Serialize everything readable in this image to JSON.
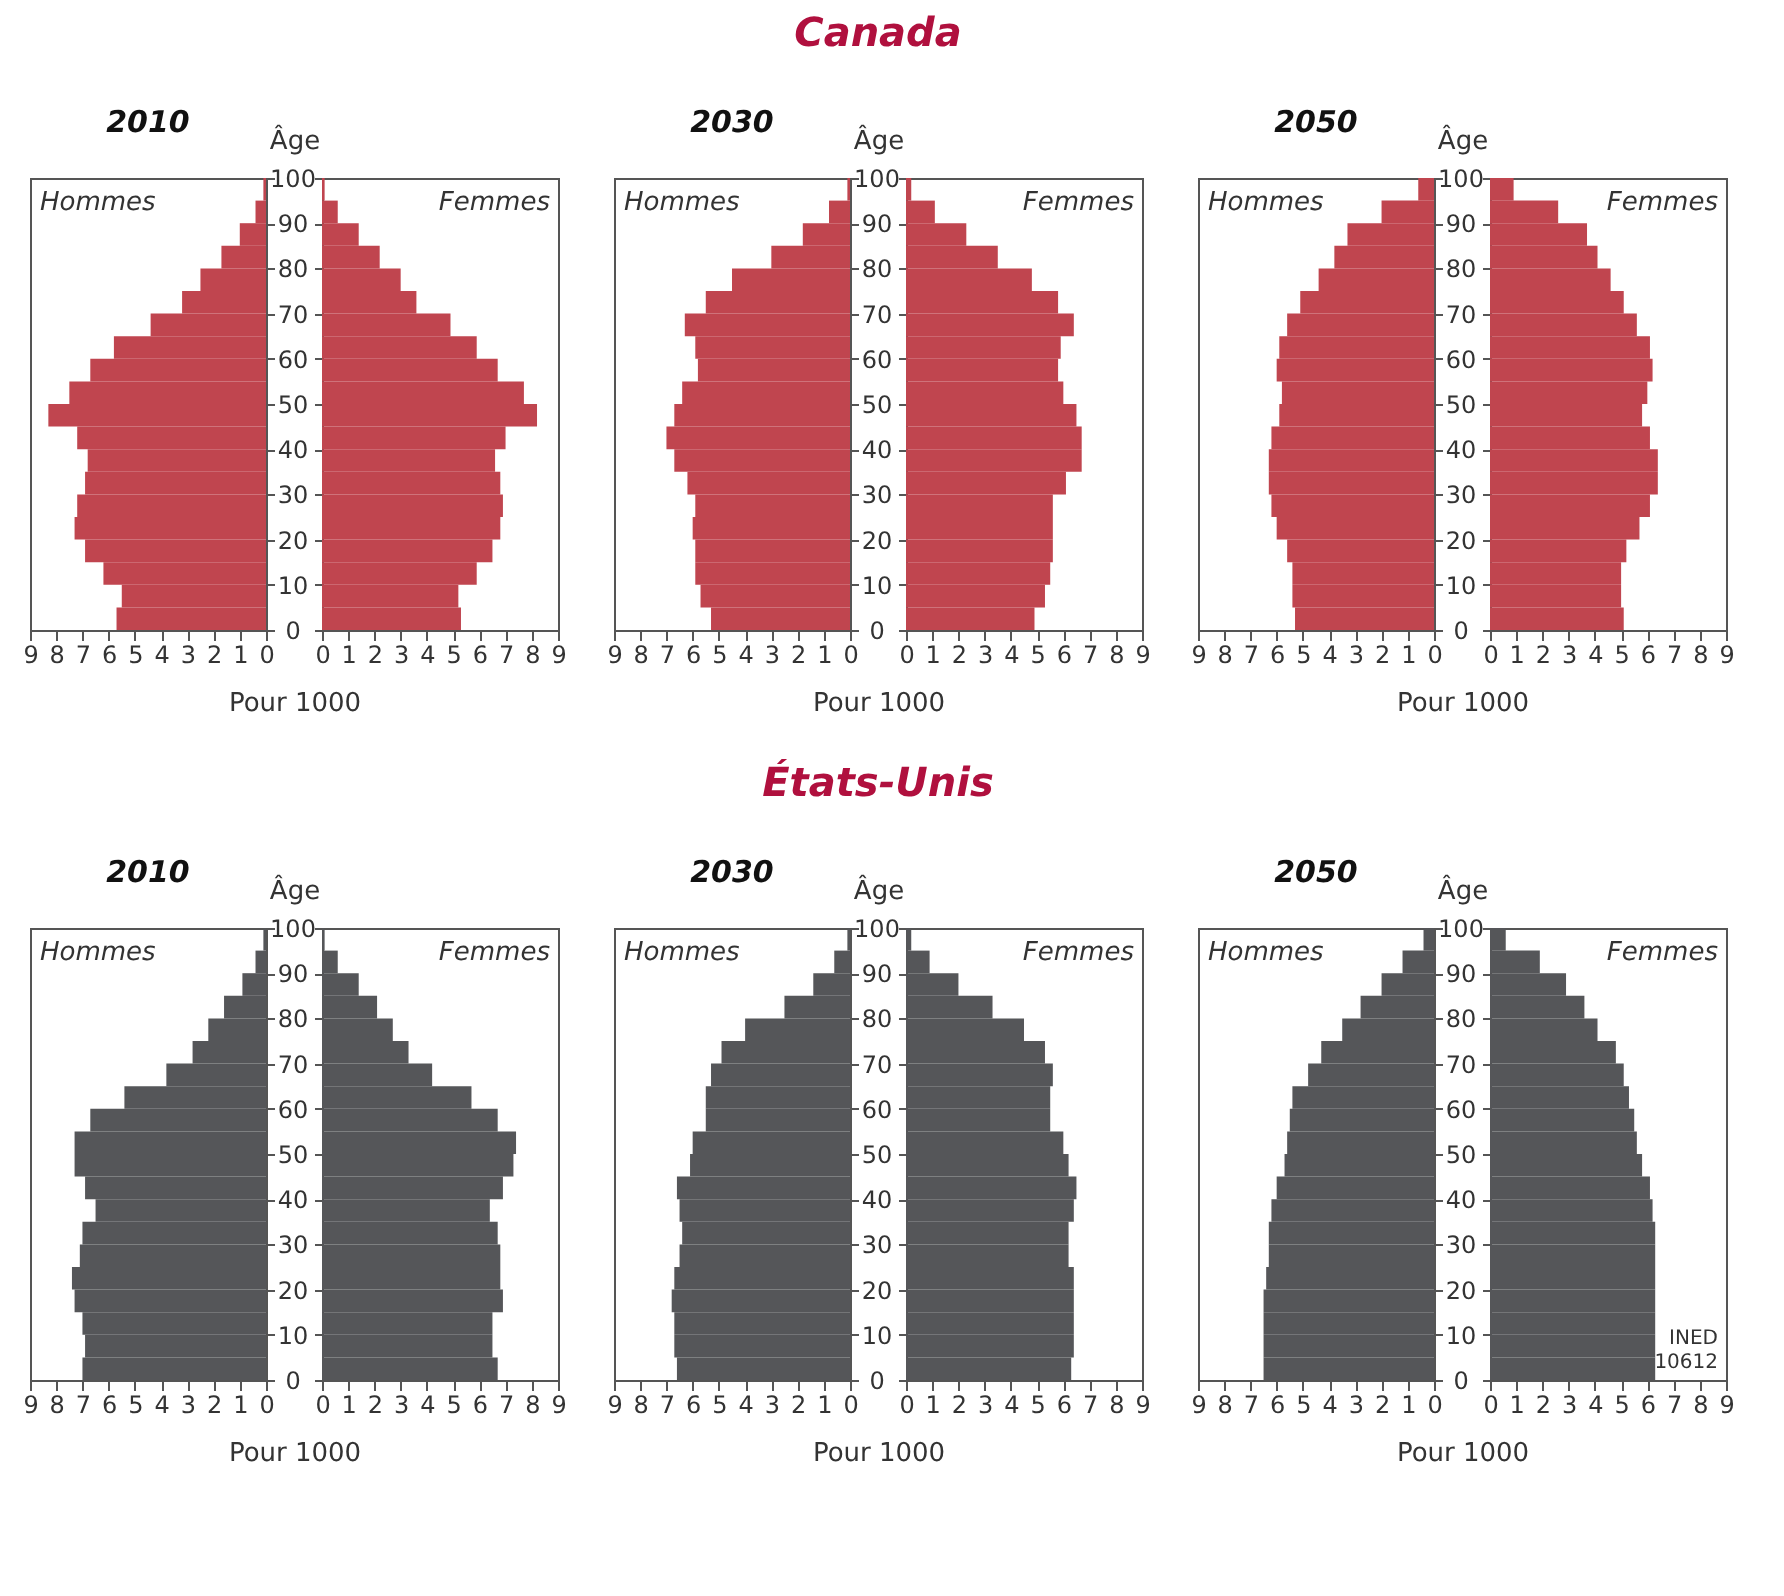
{
  "chart_data": [
    {
      "type": "histogram",
      "orientation": "horizontal",
      "subtitle": "2010",
      "xlabel": "Pour 1000",
      "annotations": [
        "Hommes"
      ],
      "color": "#c0454f",
      "bins": [
        0,
        5,
        10,
        15,
        20,
        25,
        30,
        35,
        40,
        45,
        50,
        55,
        60,
        65,
        70,
        75,
        80,
        85,
        90,
        95,
        100
      ],
      "values": [
        5.7,
        5.5,
        6.2,
        6.9,
        7.3,
        7.2,
        6.9,
        6.8,
        7.2,
        8.3,
        7.5,
        6.7,
        5.8,
        4.4,
        3.2,
        2.5,
        1.7,
        1.0,
        0.4,
        0.1
      ],
      "xlim": [
        9,
        0
      ],
      "xticks": [
        9,
        8,
        7,
        6,
        5,
        4,
        3,
        2,
        1,
        0
      ],
      "ylim": [
        0,
        100
      ],
      "yticks": [
        0,
        10,
        20,
        30,
        40,
        50,
        60,
        70,
        80,
        90,
        100
      ],
      "tick_labels": "x"
    },
    {
      "type": "histogram",
      "orientation": "horizontal",
      "ylabel": "Âge",
      "annotations": [
        "Femmes"
      ],
      "color": "#c0454f",
      "bins": [
        0,
        5,
        10,
        15,
        20,
        25,
        30,
        35,
        40,
        45,
        50,
        55,
        60,
        65,
        70,
        75,
        80,
        85,
        90,
        95,
        100
      ],
      "values": [
        5.3,
        5.2,
        5.9,
        6.5,
        6.8,
        6.9,
        6.8,
        6.6,
        7.0,
        8.2,
        7.7,
        6.7,
        5.9,
        4.9,
        3.6,
        3.0,
        2.2,
        1.4,
        0.6,
        0.1
      ],
      "xlim": [
        0,
        9
      ],
      "xticks": [
        0,
        1,
        2,
        3,
        4,
        5,
        6,
        7,
        8,
        9
      ],
      "ylim": [
        0,
        100
      ],
      "yticks": [
        0,
        10,
        20,
        30,
        40,
        50,
        60,
        70,
        80,
        90,
        100
      ]
    },
    {
      "type": "histogram",
      "orientation": "horizontal",
      "title": "Canada",
      "subtitle": "2030",
      "xlabel": "Pour 1000",
      "annotations": [
        "Hommes"
      ],
      "color": "#c0454f",
      "bins": [
        0,
        5,
        10,
        15,
        20,
        25,
        30,
        35,
        40,
        45,
        50,
        55,
        60,
        65,
        70,
        75,
        80,
        85,
        90,
        95,
        100
      ],
      "values": [
        5.3,
        5.7,
        5.9,
        5.9,
        6.0,
        5.9,
        6.2,
        6.7,
        7.0,
        6.7,
        6.4,
        5.8,
        5.9,
        6.3,
        5.5,
        4.5,
        3.0,
        1.8,
        0.8,
        0.1
      ],
      "xlim": [
        9,
        0
      ],
      "xticks": [
        9,
        8,
        7,
        6,
        5,
        4,
        3,
        2,
        1,
        0
      ],
      "ylim": [
        0,
        100
      ],
      "yticks": [
        0,
        10,
        20,
        30,
        40,
        50,
        60,
        70,
        80,
        90,
        100
      ],
      "tick_labels": "x"
    },
    {
      "type": "histogram",
      "orientation": "horizontal",
      "ylabel": "Âge",
      "annotations": [
        "Femmes"
      ],
      "color": "#c0454f",
      "bins": [
        0,
        5,
        10,
        15,
        20,
        25,
        30,
        35,
        40,
        45,
        50,
        55,
        60,
        65,
        70,
        75,
        80,
        85,
        90,
        95,
        100
      ],
      "values": [
        4.9,
        5.3,
        5.5,
        5.6,
        5.6,
        5.6,
        6.1,
        6.7,
        6.7,
        6.5,
        6.0,
        5.8,
        5.9,
        6.4,
        5.8,
        4.8,
        3.5,
        2.3,
        1.1,
        0.2
      ],
      "xlim": [
        0,
        9
      ],
      "xticks": [
        0,
        1,
        2,
        3,
        4,
        5,
        6,
        7,
        8,
        9
      ],
      "ylim": [
        0,
        100
      ],
      "yticks": [
        0,
        10,
        20,
        30,
        40,
        50,
        60,
        70,
        80,
        90,
        100
      ]
    },
    {
      "type": "histogram",
      "orientation": "horizontal",
      "subtitle": "2050",
      "xlabel": "Pour 1000",
      "annotations": [
        "Hommes"
      ],
      "color": "#c0454f",
      "bins": [
        0,
        5,
        10,
        15,
        20,
        25,
        30,
        35,
        40,
        45,
        50,
        55,
        60,
        65,
        70,
        75,
        80,
        85,
        90,
        95,
        100
      ],
      "values": [
        5.3,
        5.4,
        5.4,
        5.6,
        6.0,
        6.2,
        6.3,
        6.3,
        6.2,
        5.9,
        5.8,
        6.0,
        5.9,
        5.6,
        5.1,
        4.4,
        3.8,
        3.3,
        2.0,
        0.6
      ],
      "xlim": [
        9,
        0
      ],
      "xticks": [
        9,
        8,
        7,
        6,
        5,
        4,
        3,
        2,
        1,
        0
      ],
      "ylim": [
        0,
        100
      ],
      "yticks": [
        0,
        10,
        20,
        30,
        40,
        50,
        60,
        70,
        80,
        90,
        100
      ],
      "tick_labels": "x"
    },
    {
      "type": "histogram",
      "orientation": "horizontal",
      "ylabel": "Âge",
      "annotations": [
        "Femmes"
      ],
      "color": "#c0454f",
      "bins": [
        0,
        5,
        10,
        15,
        20,
        25,
        30,
        35,
        40,
        45,
        50,
        55,
        60,
        65,
        70,
        75,
        80,
        85,
        90,
        95,
        100
      ],
      "values": [
        5.1,
        5.0,
        5.0,
        5.2,
        5.7,
        6.1,
        6.4,
        6.4,
        6.1,
        5.8,
        6.0,
        6.2,
        6.1,
        5.6,
        5.1,
        4.6,
        4.1,
        3.7,
        2.6,
        0.9
      ],
      "xlim": [
        0,
        9
      ],
      "xticks": [
        0,
        1,
        2,
        3,
        4,
        5,
        6,
        7,
        8,
        9
      ],
      "ylim": [
        0,
        100
      ],
      "yticks": [
        0,
        10,
        20,
        30,
        40,
        50,
        60,
        70,
        80,
        90,
        100
      ]
    },
    {
      "type": "histogram",
      "orientation": "horizontal",
      "subtitle": "2010",
      "xlabel": "Pour 1000",
      "annotations": [
        "Hommes"
      ],
      "color": "#555659",
      "bins": [
        0,
        5,
        10,
        15,
        20,
        25,
        30,
        35,
        40,
        45,
        50,
        55,
        60,
        65,
        70,
        75,
        80,
        85,
        90,
        95,
        100
      ],
      "values": [
        7.0,
        6.9,
        7.0,
        7.3,
        7.4,
        7.1,
        7.0,
        6.5,
        6.9,
        7.3,
        7.3,
        6.7,
        5.4,
        3.8,
        2.8,
        2.2,
        1.6,
        0.9,
        0.4,
        0.1
      ],
      "xlim": [
        9,
        0
      ],
      "xticks": [
        9,
        8,
        7,
        6,
        5,
        4,
        3,
        2,
        1,
        0
      ],
      "ylim": [
        0,
        100
      ],
      "yticks": [
        0,
        10,
        20,
        30,
        40,
        50,
        60,
        70,
        80,
        90,
        100
      ],
      "tick_labels": "x"
    },
    {
      "type": "histogram",
      "orientation": "horizontal",
      "ylabel": "Âge",
      "annotations": [
        "Femmes"
      ],
      "color": "#555659",
      "bins": [
        0,
        5,
        10,
        15,
        20,
        25,
        30,
        35,
        40,
        45,
        50,
        55,
        60,
        65,
        70,
        75,
        80,
        85,
        90,
        95,
        100
      ],
      "values": [
        6.7,
        6.5,
        6.5,
        6.9,
        6.8,
        6.8,
        6.7,
        6.4,
        6.9,
        7.3,
        7.4,
        6.7,
        5.7,
        4.2,
        3.3,
        2.7,
        2.1,
        1.4,
        0.6,
        0.1
      ],
      "xlim": [
        0,
        9
      ],
      "xticks": [
        0,
        1,
        2,
        3,
        4,
        5,
        6,
        7,
        8,
        9
      ],
      "ylim": [
        0,
        100
      ],
      "yticks": [
        0,
        10,
        20,
        30,
        40,
        50,
        60,
        70,
        80,
        90,
        100
      ]
    },
    {
      "type": "histogram",
      "orientation": "horizontal",
      "title": "États-Unis",
      "subtitle": "2030",
      "xlabel": "Pour 1000",
      "annotations": [
        "Hommes"
      ],
      "color": "#555659",
      "bins": [
        0,
        5,
        10,
        15,
        20,
        25,
        30,
        35,
        40,
        45,
        50,
        55,
        60,
        65,
        70,
        75,
        80,
        85,
        90,
        95,
        100
      ],
      "values": [
        6.6,
        6.7,
        6.7,
        6.8,
        6.7,
        6.5,
        6.4,
        6.5,
        6.6,
        6.1,
        6.0,
        5.5,
        5.5,
        5.3,
        4.9,
        4.0,
        2.5,
        1.4,
        0.6,
        0.1
      ],
      "xlim": [
        9,
        0
      ],
      "xticks": [
        9,
        8,
        7,
        6,
        5,
        4,
        3,
        2,
        1,
        0
      ],
      "ylim": [
        0,
        100
      ],
      "yticks": [
        0,
        10,
        20,
        30,
        40,
        50,
        60,
        70,
        80,
        90,
        100
      ],
      "tick_labels": "x"
    },
    {
      "type": "histogram",
      "orientation": "horizontal",
      "ylabel": "Âge",
      "annotations": [
        "Femmes"
      ],
      "color": "#555659",
      "bins": [
        0,
        5,
        10,
        15,
        20,
        25,
        30,
        35,
        40,
        45,
        50,
        55,
        60,
        65,
        70,
        75,
        80,
        85,
        90,
        95,
        100
      ],
      "values": [
        6.3,
        6.4,
        6.4,
        6.4,
        6.4,
        6.2,
        6.2,
        6.4,
        6.5,
        6.2,
        6.0,
        5.5,
        5.5,
        5.6,
        5.3,
        4.5,
        3.3,
        2.0,
        0.9,
        0.2
      ],
      "xlim": [
        0,
        9
      ],
      "xticks": [
        0,
        1,
        2,
        3,
        4,
        5,
        6,
        7,
        8,
        9
      ],
      "ylim": [
        0,
        100
      ],
      "yticks": [
        0,
        10,
        20,
        30,
        40,
        50,
        60,
        70,
        80,
        90,
        100
      ]
    },
    {
      "type": "histogram",
      "orientation": "horizontal",
      "subtitle": "2050",
      "xlabel": "Pour 1000",
      "annotations": [
        "Hommes"
      ],
      "color": "#555659",
      "bins": [
        0,
        5,
        10,
        15,
        20,
        25,
        30,
        35,
        40,
        45,
        50,
        55,
        60,
        65,
        70,
        75,
        80,
        85,
        90,
        95,
        100
      ],
      "values": [
        6.5,
        6.5,
        6.5,
        6.5,
        6.4,
        6.3,
        6.3,
        6.2,
        6.0,
        5.7,
        5.6,
        5.5,
        5.4,
        4.8,
        4.3,
        3.5,
        2.8,
        2.0,
        1.2,
        0.4
      ],
      "xlim": [
        9,
        0
      ],
      "xticks": [
        9,
        8,
        7,
        6,
        5,
        4,
        3,
        2,
        1,
        0
      ],
      "ylim": [
        0,
        100
      ],
      "yticks": [
        0,
        10,
        20,
        30,
        40,
        50,
        60,
        70,
        80,
        90,
        100
      ],
      "tick_labels": "x"
    },
    {
      "type": "histogram",
      "orientation": "horizontal",
      "ylabel": "Âge",
      "annotations": [
        "Femmes",
        "INED 10612"
      ],
      "color": "#555659",
      "bins": [
        0,
        5,
        10,
        15,
        20,
        25,
        30,
        35,
        40,
        45,
        50,
        55,
        60,
        65,
        70,
        75,
        80,
        85,
        90,
        95,
        100
      ],
      "values": [
        6.3,
        6.3,
        6.3,
        6.3,
        6.3,
        6.3,
        6.3,
        6.2,
        6.1,
        5.8,
        5.6,
        5.5,
        5.3,
        5.1,
        4.8,
        4.1,
        3.6,
        2.9,
        1.9,
        0.6
      ],
      "xlim": [
        0,
        9
      ],
      "xticks": [
        0,
        1,
        2,
        3,
        4,
        5,
        6,
        7,
        8,
        9
      ],
      "ylim": [
        0,
        100
      ],
      "yticks": [
        0,
        10,
        20,
        30,
        40,
        50,
        60,
        70,
        80,
        90,
        100
      ]
    }
  ]
}
